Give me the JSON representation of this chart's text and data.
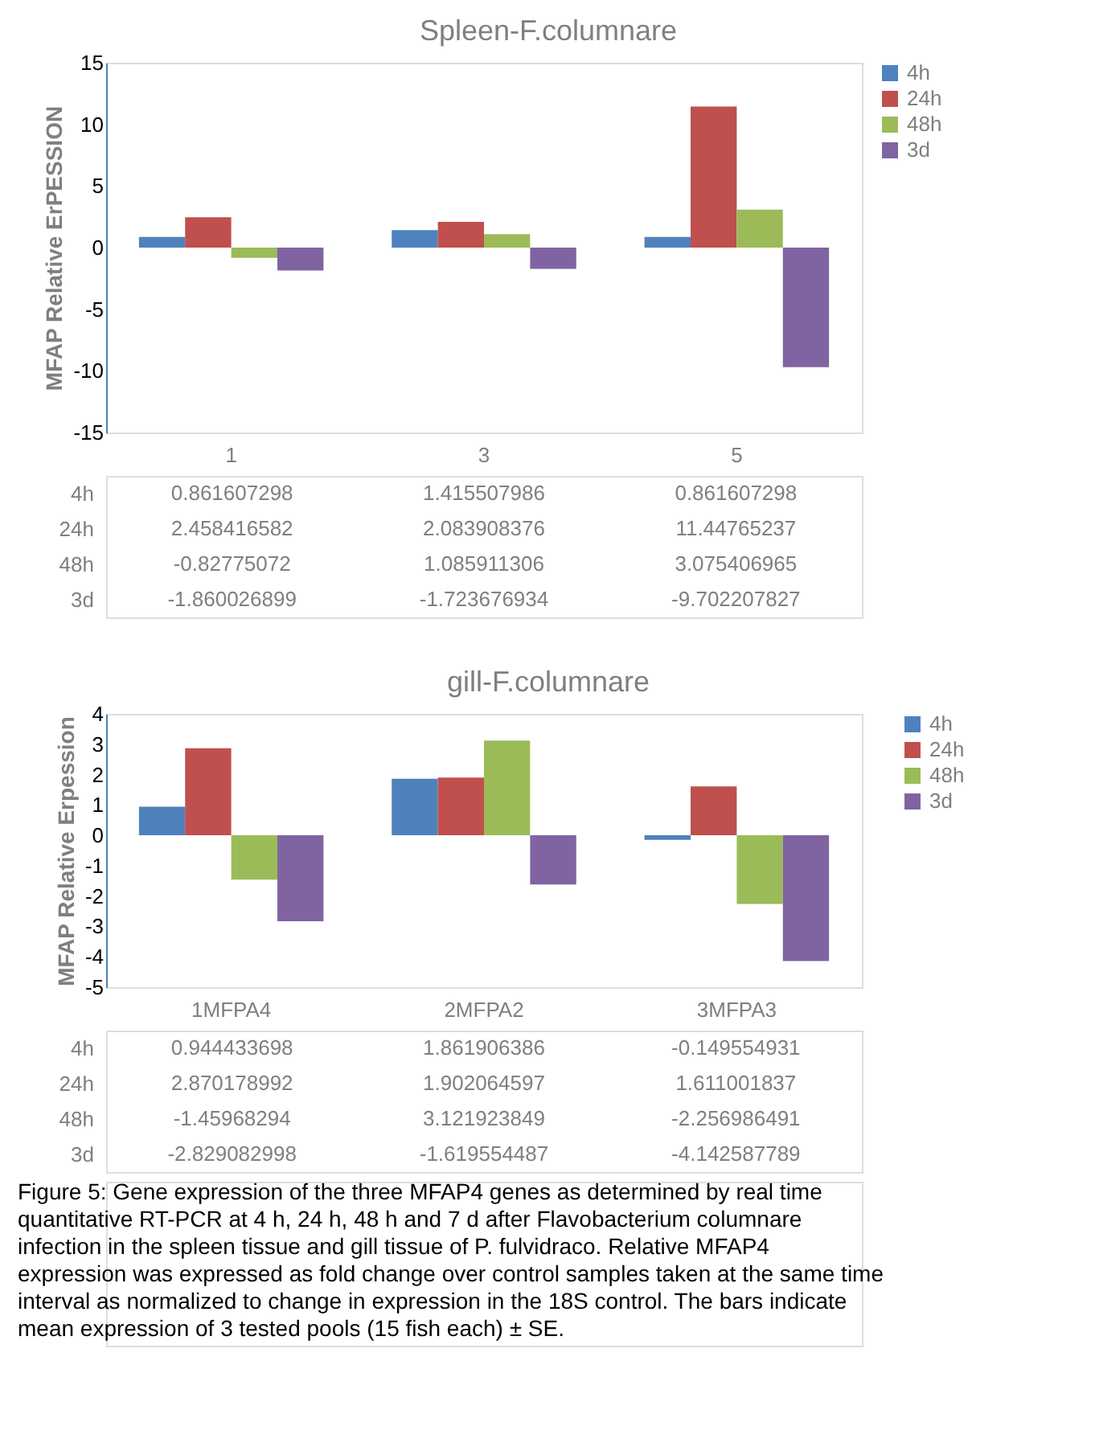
{
  "chart_data": [
    {
      "type": "bar",
      "title": "Spleen-F.columnare",
      "ylabel": "MFAP Relative ErPESSION",
      "categories": [
        "1",
        "3",
        "5"
      ],
      "series": [
        {
          "name": "4h",
          "color": "#4f81bd",
          "values": [
            0.861607298,
            1.415507986,
            0.861607298
          ]
        },
        {
          "name": "24h",
          "color": "#c0504d",
          "values": [
            2.458416582,
            2.083908376,
            11.44765237
          ]
        },
        {
          "name": "48h",
          "color": "#9bbb59",
          "values": [
            -0.82775072,
            1.085911306,
            3.075406965
          ]
        },
        {
          "name": "3d",
          "color": "#8064a2",
          "values": [
            -1.860026899,
            -1.723676934,
            -9.702207827
          ]
        }
      ],
      "ylim": [
        -15,
        15
      ],
      "yticks": [
        -15,
        -10,
        -5,
        0,
        5,
        10,
        15
      ],
      "grid": false,
      "legend": "right",
      "data_labels": true
    },
    {
      "type": "bar",
      "title": "gill-F.columnare",
      "ylabel": "MFAP Relative Erpession",
      "categories": [
        "1MFPA4",
        "2MFPA2",
        "3MFPA3"
      ],
      "series": [
        {
          "name": "4h",
          "color": "#4f81bd",
          "values": [
            0.944433698,
            1.861906386,
            -0.149554931
          ]
        },
        {
          "name": "24h",
          "color": "#c0504d",
          "values": [
            2.870178992,
            1.902064597,
            1.611001837
          ]
        },
        {
          "name": "48h",
          "color": "#9bbb59",
          "values": [
            -1.45968294,
            3.121923849,
            -2.256986491
          ]
        },
        {
          "name": "3d",
          "color": "#8064a2",
          "values": [
            -2.829082998,
            -1.619554487,
            -4.142587789
          ]
        }
      ],
      "ylim": [
        -5,
        4
      ],
      "yticks": [
        -5,
        -4,
        -3,
        -2,
        -1,
        0,
        1,
        2,
        3,
        4
      ],
      "grid": false,
      "legend": "right",
      "data_labels": true,
      "annotations": [
        "Figure 5: Gene expression of the three MFAP4 genes as determined by real time quantitative RT-PCR at 4 h, 24 h, 48 h and 7 d after Flavobacterium columnare infection in the spleen tissue and gill tissue of P. fulvidraco. Relative MFAP4 expression was expressed as fold change over control samples taken at the same time interval as normalized to change in expression in the 18S control. The bars indicate mean expression of 3 tested pools (15 fish each) ± SE."
      ]
    }
  ]
}
